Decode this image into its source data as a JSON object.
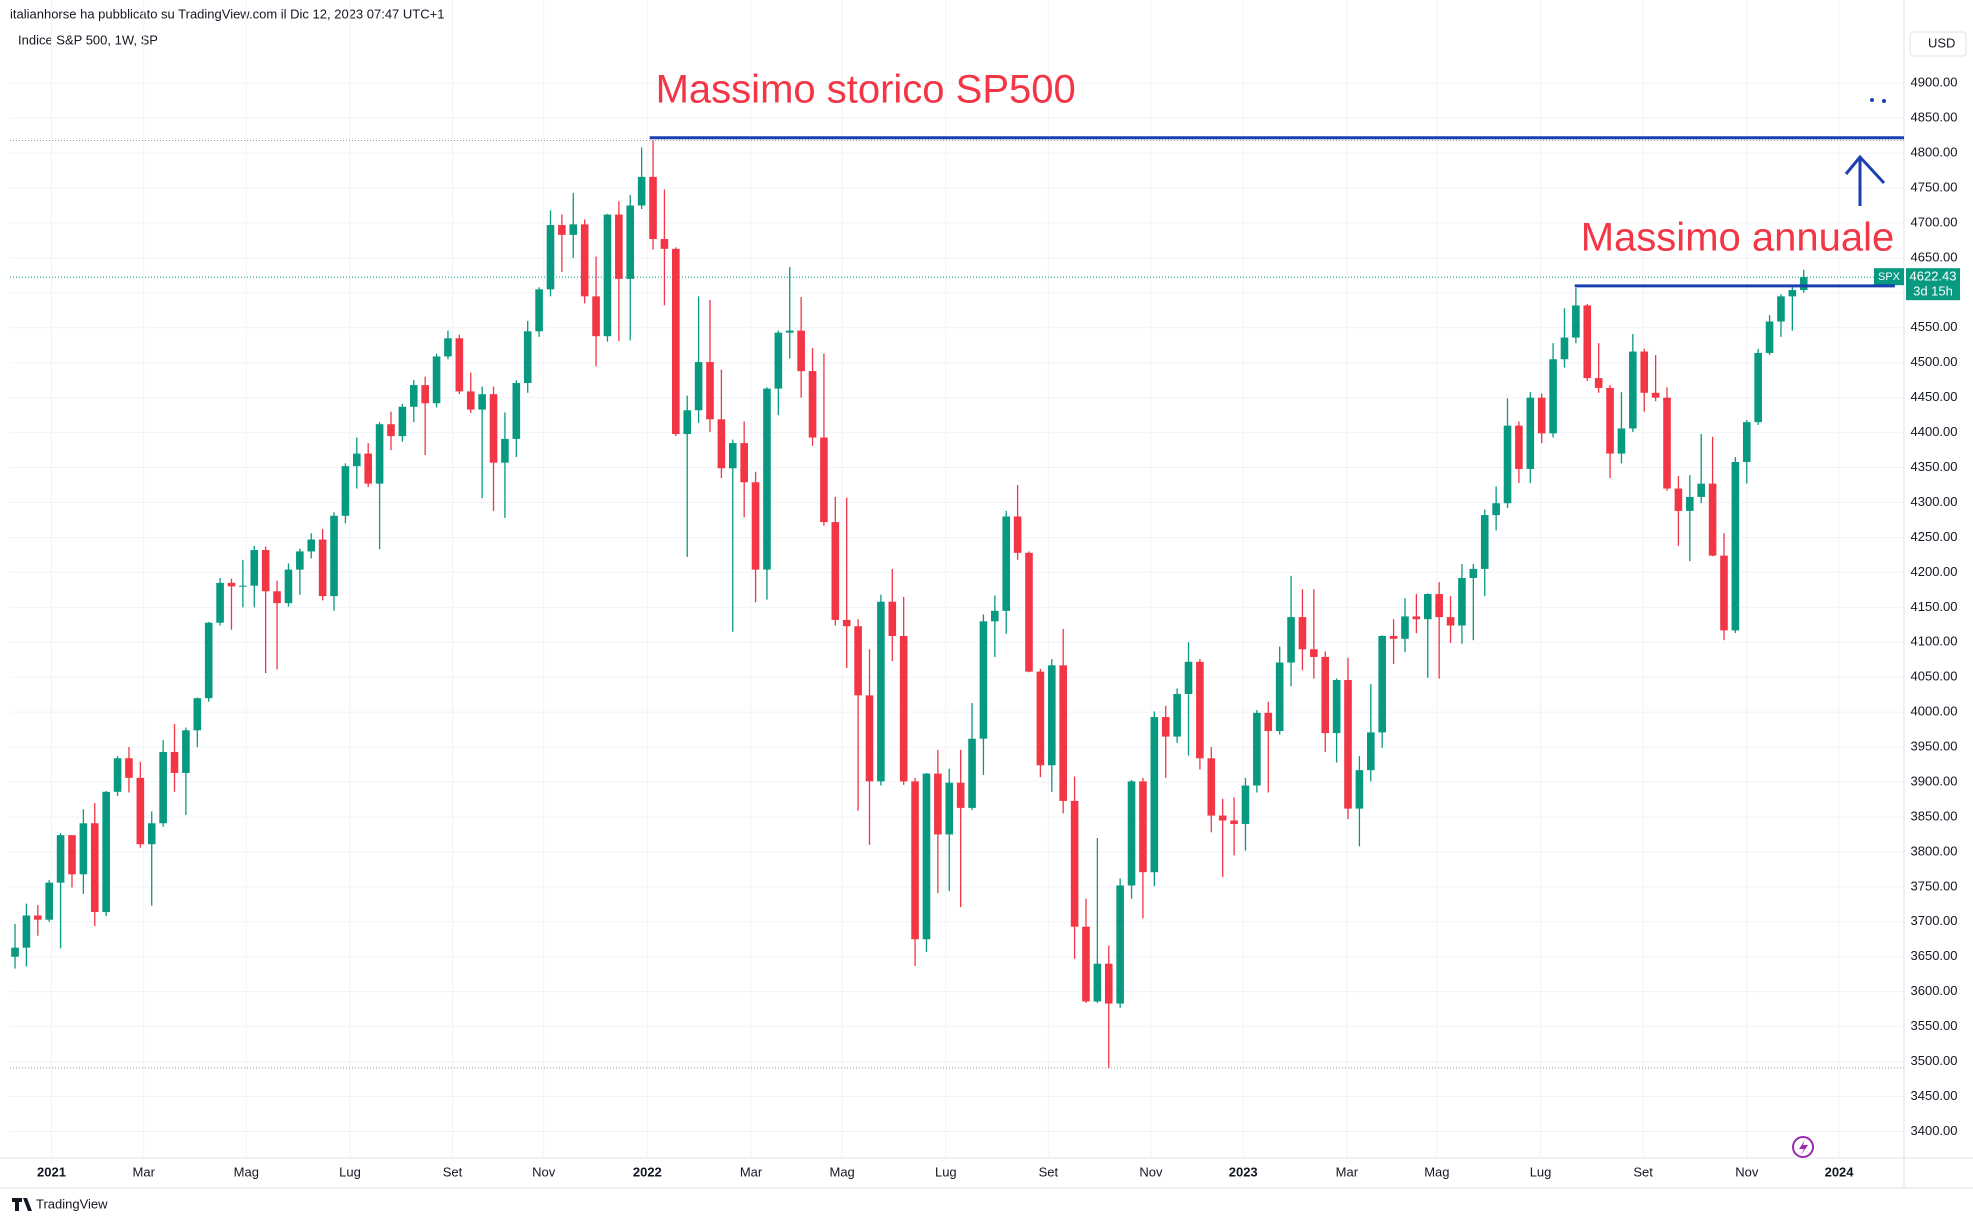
{
  "header": {
    "publisher": "italianhorse ha pubblicato su TradingView.com il Dic 12, 2023 07:47 UTC+1",
    "brand": "TradingView"
  },
  "chart_data": {
    "type": "candlestick",
    "title": "Indice S&P 500, 1W, SP",
    "currency": "USD",
    "up_color": "#089981",
    "down_color": "#f23645",
    "grid": true,
    "xlim": [
      -0.44,
      165.8
    ],
    "ylim": [
      3362,
      4979
    ],
    "xticks": [
      {
        "value": 3.2,
        "label": "2021"
      },
      {
        "value": 11.3,
        "label": "Mar"
      },
      {
        "value": 20.3,
        "label": "Mag"
      },
      {
        "value": 29.4,
        "label": "Lug"
      },
      {
        "value": 38.4,
        "label": "Set"
      },
      {
        "value": 46.4,
        "label": "Nov"
      },
      {
        "value": 55.5,
        "label": "2022"
      },
      {
        "value": 64.6,
        "label": "Mar"
      },
      {
        "value": 72.6,
        "label": "Mag"
      },
      {
        "value": 81.7,
        "label": "Lug"
      },
      {
        "value": 90.7,
        "label": "Set"
      },
      {
        "value": 99.7,
        "label": "Nov"
      },
      {
        "value": 107.8,
        "label": "2023"
      },
      {
        "value": 116.9,
        "label": "Mar"
      },
      {
        "value": 124.8,
        "label": "Mag"
      },
      {
        "value": 133.9,
        "label": "Lug"
      },
      {
        "value": 142.9,
        "label": "Set"
      },
      {
        "value": 152.0,
        "label": "Nov"
      },
      {
        "value": 160.1,
        "label": "2024"
      }
    ],
    "yticks": [
      {
        "value": 3400,
        "label": "3400.00"
      },
      {
        "value": 3450,
        "label": "3450.00"
      },
      {
        "value": 3500,
        "label": "3500.00"
      },
      {
        "value": 3550,
        "label": "3550.00"
      },
      {
        "value": 3600,
        "label": "3600.00"
      },
      {
        "value": 3650,
        "label": "3650.00"
      },
      {
        "value": 3700,
        "label": "3700.00"
      },
      {
        "value": 3750,
        "label": "3750.00"
      },
      {
        "value": 3800,
        "label": "3800.00"
      },
      {
        "value": 3850,
        "label": "3850.00"
      },
      {
        "value": 3900,
        "label": "3900.00"
      },
      {
        "value": 3950,
        "label": "3950.00"
      },
      {
        "value": 4000,
        "label": "4000.00"
      },
      {
        "value": 4050,
        "label": "4050.00"
      },
      {
        "value": 4100,
        "label": "4100.00"
      },
      {
        "value": 4150,
        "label": "4150.00"
      },
      {
        "value": 4200,
        "label": "4200.00"
      },
      {
        "value": 4250,
        "label": "4250.00"
      },
      {
        "value": 4300,
        "label": "4300.00"
      },
      {
        "value": 4350,
        "label": "4350.00"
      },
      {
        "value": 4400,
        "label": "4400.00"
      },
      {
        "value": 4450,
        "label": "4450.00"
      },
      {
        "value": 4500,
        "label": "4500.00"
      },
      {
        "value": 4550,
        "label": "4550.00"
      },
      {
        "value": 4600,
        "label": "4600.00"
      },
      {
        "value": 4650,
        "label": "4650.00"
      },
      {
        "value": 4700,
        "label": "4700.00"
      },
      {
        "value": 4750,
        "label": "4750.00"
      },
      {
        "value": 4800,
        "label": "4800.00"
      },
      {
        "value": 4850,
        "label": "4850.00"
      },
      {
        "value": 4900,
        "label": "4900.00"
      }
    ],
    "series": [
      {
        "name": "SPX",
        "open": [
          3650,
          3663,
          3709,
          3703,
          3756,
          3824,
          3768,
          3841,
          3714,
          3886,
          3934,
          3906,
          3811,
          3841,
          3943,
          3913,
          3974,
          4020,
          4128,
          4185,
          4180,
          4181,
          4232,
          4173,
          4156,
          4204,
          4230,
          4247,
          4166,
          4281,
          4352,
          4370,
          4327,
          4412,
          4395,
          4437,
          4468,
          4442,
          4509,
          4535,
          4459,
          4433,
          4455,
          4357,
          4391,
          4471,
          4545,
          4605,
          4697,
          4683,
          4698,
          4595,
          4538,
          4712,
          4620,
          4725,
          4766,
          4677,
          4663,
          4398,
          4432,
          4501,
          4419,
          4349,
          4385,
          4329,
          4204,
          4463,
          4543,
          4546,
          4488,
          4393,
          4272,
          4132,
          4123,
          4024,
          3901,
          4158,
          4109,
          3901,
          3675,
          3912,
          3825,
          3899,
          3863,
          3962,
          4130,
          4145,
          4280,
          4228,
          4058,
          3924,
          4067,
          3873,
          3693,
          3586,
          3640,
          3583,
          3752,
          3901,
          3771,
          3993,
          3965,
          4026,
          4072,
          3934,
          3852,
          3845,
          3840,
          3895,
          3999,
          3973,
          4071,
          4136,
          4090,
          4079,
          3970,
          4046,
          3862,
          3917,
          3971,
          4109,
          4105,
          4137,
          4133,
          4169,
          4136,
          4124,
          4192,
          4205,
          4282,
          4299,
          4410,
          4348,
          4450,
          4399,
          4505,
          4536,
          4582,
          4478,
          4464,
          4370,
          4406,
          4516,
          4457,
          4450,
          4320,
          4288,
          4308,
          4327,
          4224,
          4117,
          4358,
          4415,
          4514,
          4559,
          4595,
          4604
        ],
        "high": [
          3697,
          3726,
          3724,
          3760,
          3827,
          3823,
          3861,
          3870,
          3887,
          3937,
          3950,
          3929,
          3858,
          3960,
          3983,
          3978,
          4021,
          4129,
          4192,
          4191,
          4218,
          4238,
          4237,
          4188,
          4213,
          4234,
          4256,
          4262,
          4286,
          4356,
          4393,
          4385,
          4415,
          4430,
          4441,
          4475,
          4480,
          4513,
          4546,
          4540,
          4486,
          4466,
          4466,
          4429,
          4475,
          4560,
          4608,
          4718,
          4712,
          4743,
          4705,
          4652,
          4713,
          4731,
          4740,
          4808,
          4818,
          4748,
          4665,
          4453,
          4595,
          4590,
          4490,
          4390,
          4416,
          4344,
          4465,
          4546,
          4637,
          4594,
          4521,
          4513,
          4308,
          4307,
          4133,
          4090,
          4168,
          4205,
          4165,
          3906,
          3913,
          3946,
          3919,
          3946,
          4013,
          4140,
          4167,
          4288,
          4325,
          4230,
          4062,
          4076,
          4119,
          3908,
          3733,
          3820,
          3666,
          3762,
          3903,
          3906,
          4001,
          4009,
          4034,
          4100,
          4076,
          3950,
          3876,
          3878,
          3906,
          4003,
          4015,
          4094,
          4195,
          4176,
          4176,
          4087,
          4048,
          4078,
          3937,
          4040,
          4110,
          4133,
          4163,
          4169,
          4170,
          4186,
          4166,
          4212,
          4212,
          4290,
          4323,
          4449,
          4416,
          4458,
          4456,
          4528,
          4578,
          4607,
          4584,
          4528,
          4468,
          4458,
          4541,
          4520,
          4511,
          4465,
          4338,
          4339,
          4398,
          4394,
          4256,
          4365,
          4418,
          4520,
          4568,
          4598,
          4609,
          4633
        ],
        "low": [
          3633,
          3636,
          3680,
          3700,
          3662,
          3749,
          3740,
          3694,
          3708,
          3880,
          3885,
          3806,
          3723,
          3836,
          3886,
          3853,
          3950,
          4015,
          4124,
          4118,
          4150,
          4150,
          4056,
          4061,
          4151,
          4168,
          4220,
          4160,
          4145,
          4270,
          4320,
          4322,
          4233,
          4375,
          4387,
          4415,
          4368,
          4436,
          4505,
          4455,
          4428,
          4306,
          4288,
          4278,
          4365,
          4457,
          4537,
          4595,
          4630,
          4650,
          4585,
          4495,
          4530,
          4531,
          4532,
          4720,
          4662,
          4582,
          4395,
          4222,
          4414,
          4401,
          4335,
          4115,
          4279,
          4157,
          4161,
          4425,
          4506,
          4450,
          4381,
          4267,
          4124,
          4063,
          3859,
          3810,
          3895,
          4073,
          3896,
          3637,
          3657,
          3741,
          3744,
          3721,
          3860,
          3910,
          4079,
          4112,
          4218,
          4057,
          3907,
          3886,
          3855,
          3647,
          3584,
          3584,
          3491,
          3577,
          3733,
          3705,
          3751,
          3906,
          3956,
          3938,
          3918,
          3828,
          3764,
          3795,
          3802,
          3885,
          3885,
          3968,
          4037,
          4060,
          4048,
          3943,
          3928,
          3847,
          3808,
          3901,
          3949,
          4069,
          4086,
          4113,
          4049,
          4048,
          4099,
          4098,
          4103,
          4166,
          4260,
          4292,
          4328,
          4328,
          4385,
          4393,
          4493,
          4528,
          4474,
          4457,
          4335,
          4356,
          4401,
          4430,
          4445,
          4317,
          4238,
          4216,
          4299,
          4223,
          4103,
          4113,
          4327,
          4411,
          4511,
          4537,
          4546,
          4600
        ],
        "close": [
          3663,
          3709,
          3703,
          3756,
          3824,
          3768,
          3841,
          3714,
          3886,
          3934,
          3906,
          3811,
          3841,
          3943,
          3913,
          3974,
          4020,
          4128,
          4185,
          4180,
          4181,
          4232,
          4173,
          4156,
          4204,
          4230,
          4247,
          4166,
          4281,
          4352,
          4370,
          4327,
          4412,
          4395,
          4437,
          4468,
          4442,
          4509,
          4535,
          4459,
          4433,
          4455,
          4357,
          4391,
          4471,
          4545,
          4605,
          4697,
          4683,
          4698,
          4595,
          4538,
          4712,
          4620,
          4725,
          4766,
          4677,
          4663,
          4398,
          4432,
          4501,
          4419,
          4349,
          4385,
          4329,
          4204,
          4463,
          4543,
          4546,
          4488,
          4393,
          4272,
          4132,
          4123,
          4024,
          3901,
          4158,
          4109,
          3901,
          3675,
          3912,
          3825,
          3899,
          3863,
          3962,
          4130,
          4145,
          4280,
          4228,
          4058,
          3924,
          4067,
          3873,
          3693,
          3586,
          3640,
          3583,
          3752,
          3901,
          3771,
          3993,
          3965,
          4026,
          4072,
          3934,
          3852,
          3845,
          3840,
          3895,
          3999,
          3973,
          4071,
          4136,
          4090,
          4079,
          3970,
          4046,
          3862,
          3917,
          3971,
          4109,
          4105,
          4137,
          4133,
          4169,
          4136,
          4124,
          4192,
          4205,
          4282,
          4299,
          4410,
          4348,
          4450,
          4399,
          4505,
          4536,
          4582,
          4478,
          4464,
          4370,
          4406,
          4516,
          4457,
          4450,
          4320,
          4288,
          4308,
          4327,
          4224,
          4117,
          4358,
          4415,
          4514,
          4559,
          4595,
          4604,
          4622.43
        ]
      }
    ],
    "last_price": {
      "value": 4622.43,
      "countdown": "3d 15h"
    },
    "annotations": [
      {
        "text": "Massimo storico SP500",
        "y": 4822,
        "x": [
          55.7,
          165.8
        ],
        "text_color": "#f23645",
        "line_color": "#1c3fb0"
      },
      {
        "text": "Massimo annuale",
        "y": 4610,
        "x": [
          136.9,
          165.0
        ],
        "text_color": "#f23645",
        "line_color": "#1c3fb0"
      }
    ]
  }
}
